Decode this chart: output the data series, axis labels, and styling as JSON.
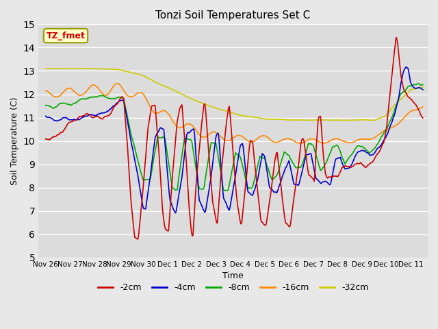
{
  "title": "Tonzi Soil Temperatures Set C",
  "xlabel": "Time",
  "ylabel": "Soil Temperature (C)",
  "ylim": [
    5.0,
    15.0
  ],
  "yticks": [
    5.0,
    6.0,
    7.0,
    8.0,
    9.0,
    10.0,
    11.0,
    12.0,
    13.0,
    14.0,
    15.0
  ],
  "bg_color": "#e8e8e8",
  "plot_bg_color": "#dcdcdc",
  "grid_color": "#ffffff",
  "series_colors": {
    "-2cm": "#cc0000",
    "-4cm": "#0000cc",
    "-8cm": "#00aa00",
    "-16cm": "#ff8800",
    "-32cm": "#cccc00"
  },
  "tz_fmet_label": "TZ_fmet",
  "tz_box_color": "#ffffcc",
  "tz_text_color": "#cc0000",
  "xtick_labels": [
    "Nov 26",
    "Nov 27",
    "Nov 28",
    "Nov 29",
    "Nov 30",
    "Dec 1",
    "Dec 2",
    "Dec 3",
    "Dec 4",
    "Dec 5",
    "Dec 6",
    "Dec 7",
    "Dec 8",
    "Dec 9",
    "Dec 10",
    "Dec 11"
  ]
}
